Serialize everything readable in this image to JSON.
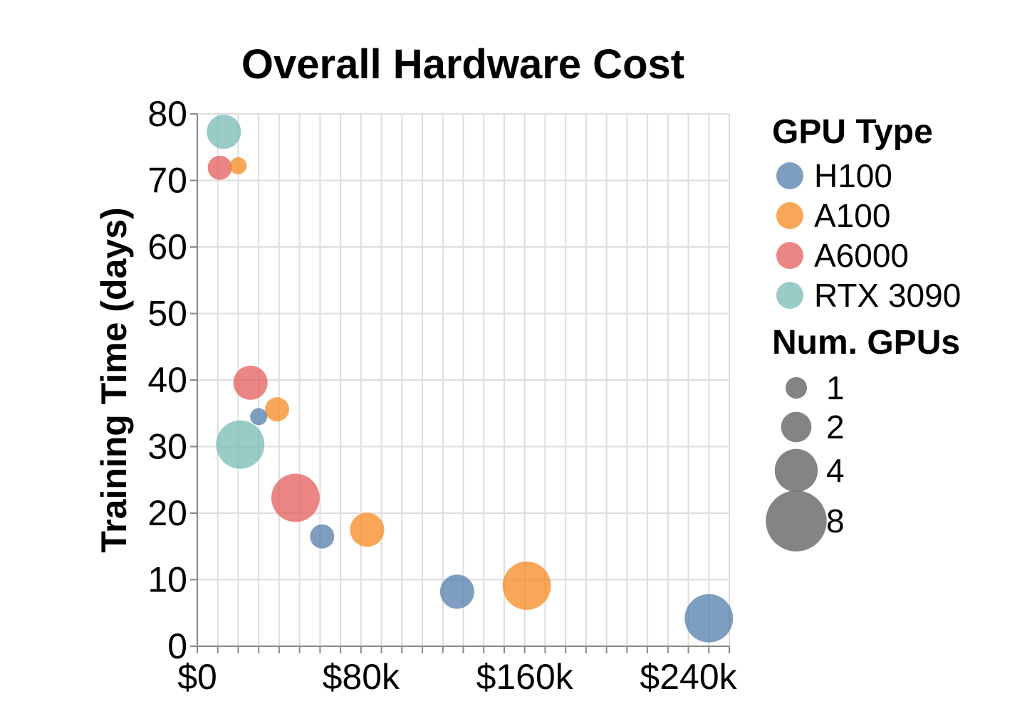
{
  "chart_data": {
    "type": "scatter",
    "title": "Overall Hardware Cost",
    "xlabel": "",
    "ylabel": "Training Time (days)",
    "xlim": [
      0,
      260000
    ],
    "ylim": [
      0,
      80
    ],
    "x_ticks": [
      0,
      80000,
      160000,
      240000
    ],
    "x_tick_labels": [
      "$0",
      "$80k",
      "$160k",
      "$240k"
    ],
    "y_ticks": [
      0,
      10,
      20,
      30,
      40,
      50,
      60,
      70,
      80
    ],
    "y_tick_labels": [
      "0",
      "10",
      "20",
      "30",
      "40",
      "50",
      "60",
      "70",
      "80"
    ],
    "grid": true,
    "colors": {
      "H100": "#4c78a8",
      "A100": "#f58518",
      "A6000": "#e45756",
      "RTX 3090": "#72b7b2"
    },
    "legend": {
      "color_title": "GPU Type",
      "color_items": [
        "H100",
        "A100",
        "A6000",
        "RTX 3090"
      ],
      "size_title": "Num. GPUs",
      "size_items": [
        "1",
        "2",
        "4",
        "8"
      ],
      "placement": "right"
    },
    "series": [
      {
        "name": "H100",
        "points": [
          {
            "x": 30000,
            "y": 34.5,
            "gpus": 1
          },
          {
            "x": 61000,
            "y": 16.5,
            "gpus": 2
          },
          {
            "x": 127000,
            "y": 8.2,
            "gpus": 4
          },
          {
            "x": 250000,
            "y": 4.2,
            "gpus": 8
          }
        ]
      },
      {
        "name": "A100",
        "points": [
          {
            "x": 20000,
            "y": 72.2,
            "gpus": 1
          },
          {
            "x": 39000,
            "y": 35.6,
            "gpus": 2
          },
          {
            "x": 83000,
            "y": 17.5,
            "gpus": 4
          },
          {
            "x": 161000,
            "y": 9.1,
            "gpus": 8
          }
        ]
      },
      {
        "name": "A6000",
        "points": [
          {
            "x": 11000,
            "y": 71.9,
            "gpus": 2
          },
          {
            "x": 26000,
            "y": 39.6,
            "gpus": 4
          },
          {
            "x": 48000,
            "y": 22.3,
            "gpus": 8
          }
        ]
      },
      {
        "name": "RTX 3090",
        "points": [
          {
            "x": 13000,
            "y": 77.3,
            "gpus": 4
          },
          {
            "x": 21000,
            "y": 30.3,
            "gpus": 8
          }
        ]
      }
    ]
  }
}
